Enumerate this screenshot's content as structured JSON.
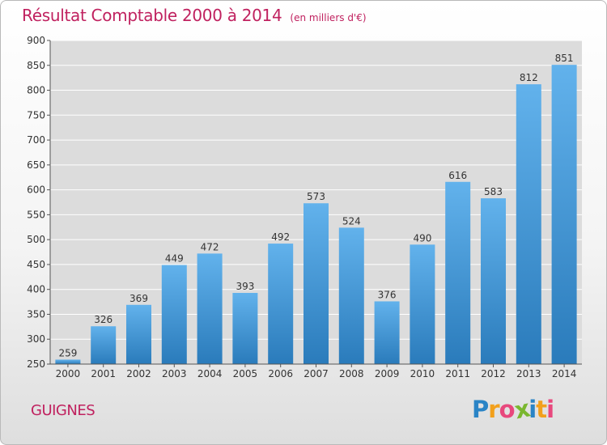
{
  "title": "Résultat Comptable 2000 à 2014",
  "unit_label": "(en milliers d'€)",
  "town_label": "GUIGNES",
  "logo": {
    "text": "Proxiti",
    "letters": [
      {
        "ch": "P",
        "color": "#2a84c6"
      },
      {
        "ch": "r",
        "color": "#f2a01c"
      },
      {
        "ch": "o",
        "color": "#e8487d"
      },
      {
        "ch": "x",
        "color": "#7ab72f"
      },
      {
        "ch": "i",
        "color": "#2a84c6"
      },
      {
        "ch": "t",
        "color": "#f2a01c"
      },
      {
        "ch": "i",
        "color": "#e8487d"
      }
    ]
  },
  "colors": {
    "title": "#c0215f",
    "bar_top": "#62b2ec",
    "bar_bottom": "#2a7bbb",
    "grid": "#ffffff",
    "plot_bg": "#dcdcdc",
    "text": "#333333"
  },
  "chart_data": {
    "type": "bar",
    "categories": [
      "2000",
      "2001",
      "2002",
      "2003",
      "2004",
      "2005",
      "2006",
      "2007",
      "2008",
      "2009",
      "2010",
      "2011",
      "2012",
      "2013",
      "2014"
    ],
    "values": [
      259,
      326,
      369,
      449,
      472,
      393,
      492,
      573,
      524,
      376,
      490,
      616,
      583,
      812,
      851
    ],
    "ylim": [
      250,
      900
    ],
    "yticks": [
      250,
      300,
      350,
      400,
      450,
      500,
      550,
      600,
      650,
      700,
      750,
      800,
      850,
      900
    ],
    "grid": true,
    "data_labels": true
  }
}
